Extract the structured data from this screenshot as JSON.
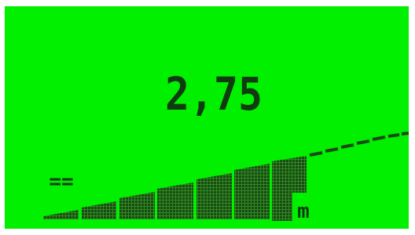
{
  "display": {
    "value": "2,75",
    "unit": "m",
    "indicator": "=="
  }
}
